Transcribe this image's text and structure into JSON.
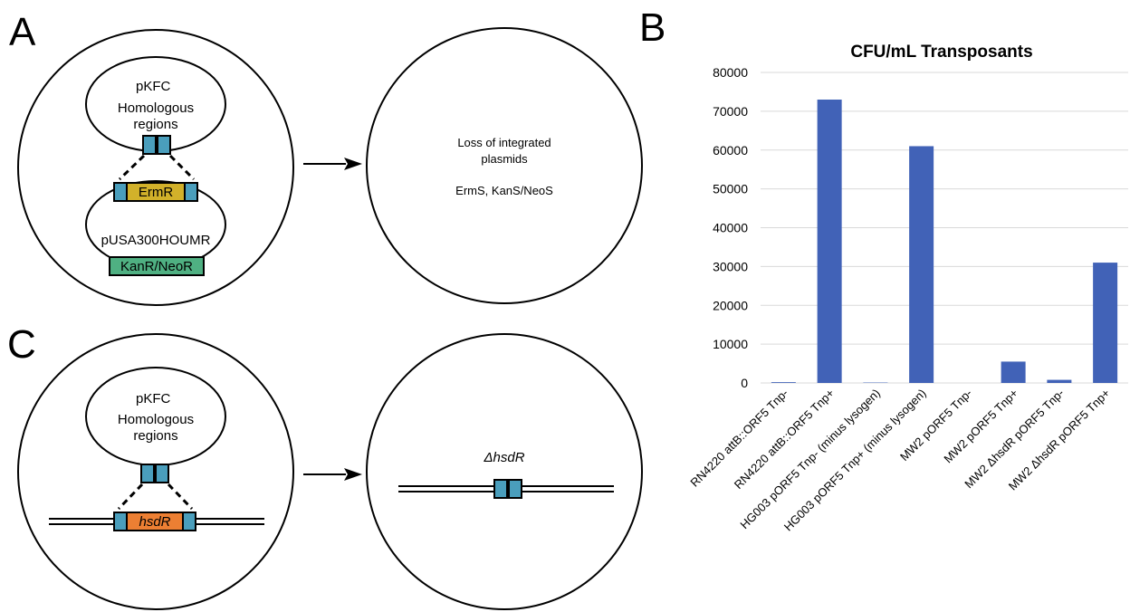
{
  "colors": {
    "homology": "#4a9ebc",
    "ermR": "#d2b12a",
    "kanR": "#4fb082",
    "hsdR": "#ec7f33",
    "bar": "#4162b7",
    "grid": "#d9d9d9"
  },
  "panelA": {
    "letter": "A",
    "plasmid1": "pKFC",
    "homology_label_1": "Homologous",
    "homology_label_2": "regions",
    "marker1": "ErmR",
    "plasmid2": "pUSA300HOUMR",
    "marker2": "KanR/NeoR",
    "result_line1": "Loss of integrated",
    "result_line2": "plasmids",
    "result_line3": "ErmS, KanS/NeoS"
  },
  "panelC": {
    "letter": "C",
    "plasmid1": "pKFC",
    "homology_label_1": "Homologous",
    "homology_label_2": "regions",
    "gene": "hsdR",
    "result": "ΔhsdR"
  },
  "panelB": {
    "letter": "B"
  },
  "chart_data": {
    "type": "bar",
    "title": "CFU/mL Transposants",
    "xlabel": "",
    "ylabel": "",
    "ylim": [
      0,
      80000
    ],
    "yticks": [
      "0",
      "10000",
      "20000",
      "30000",
      "40000",
      "50000",
      "60000",
      "70000",
      "80000"
    ],
    "grid": true,
    "categories": [
      "RN4220 attB::ORF5 Tnp-",
      "RN4220 attB::ORF5 Tnp+",
      "HG003 pORF5 Tnp- (minus lysogen)",
      "HG003 pORF5 Tnp+ (minus lysogen)",
      "MW2 pORF5 Tnp-",
      "MW2 pORF5 Tnp+",
      "MW2 ΔhsdR pORF5 Tnp-",
      "MW2 ΔhsdR pORF5 Tnp+"
    ],
    "values": [
      200,
      73000,
      100,
      61000,
      0,
      5500,
      800,
      31000
    ]
  }
}
